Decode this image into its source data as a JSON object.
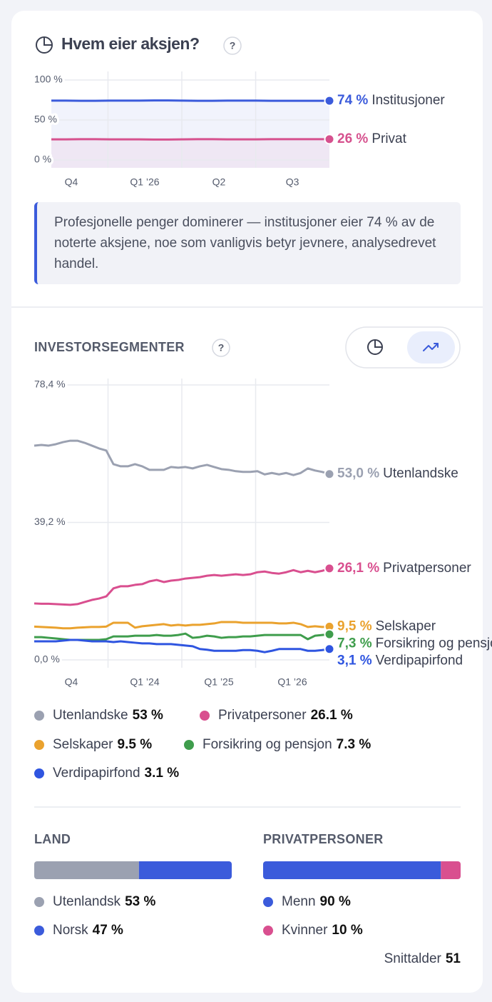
{
  "ownership": {
    "title": "Hvem eier aksjen?",
    "help": "?",
    "chart_data": {
      "type": "area",
      "xlim": [
        0,
        19
      ],
      "xticks": [
        {
          "value": 1.36,
          "label": "Q4"
        },
        {
          "value": 6.38,
          "label": "Q1 ’26"
        },
        {
          "value": 11.45,
          "label": "Q2"
        },
        {
          "value": 16.47,
          "label": "Q3"
        }
      ],
      "ylim": [
        0,
        100
      ],
      "yticks": [
        {
          "value": 100,
          "label": "100 %"
        },
        {
          "value": 50,
          "label": "50 %"
        },
        {
          "value": 0,
          "label": "0 %"
        }
      ],
      "series": [
        {
          "name": "Institusjoner",
          "color": "#3b5bdb",
          "end_label": "74 %",
          "values": [
            74.2,
            74.2,
            74,
            74,
            74.2,
            74.2,
            74.2,
            74.4,
            74.4,
            74.2,
            74,
            74,
            74.2,
            74.2,
            74.2,
            74,
            74,
            74,
            74,
            74
          ]
        },
        {
          "name": "Privat",
          "color": "#d6518e",
          "end_label": "26 %",
          "values": [
            25.8,
            25.8,
            26,
            26,
            25.8,
            25.8,
            25.8,
            25.6,
            25.6,
            25.8,
            26,
            26,
            25.8,
            25.8,
            25.8,
            26,
            26,
            26,
            26,
            26
          ]
        }
      ]
    },
    "note": "Profesjonelle penger dominerer — institusjoner eier 74 % av de noterte aksjene, noe som vanligvis betyr jevnere, analysedrevet handel."
  },
  "segments": {
    "title": "INVESTORSEGMENTER",
    "help": "?",
    "chart_data": {
      "type": "line",
      "xlim": [
        0,
        41
      ],
      "xticks": [
        {
          "value": 5.15,
          "label": "Q4"
        },
        {
          "value": 15.35,
          "label": "Q1 ’24"
        },
        {
          "value": 25.65,
          "label": "Q1 ’25"
        },
        {
          "value": 35.85,
          "label": "Q1 ’26"
        }
      ],
      "ylim": [
        0,
        78.4
      ],
      "yticks": [
        {
          "value": 78.4,
          "label": "78,4 %"
        },
        {
          "value": 39.2,
          "label": "39,2 %"
        },
        {
          "value": 0,
          "label": "0,0 %"
        }
      ],
      "series": [
        {
          "name": "Utenlandske",
          "color": "#9ba1b1",
          "end_label": "53,0 %",
          "legend_label": "53 %",
          "values": [
            61.1,
            61.3,
            61.1,
            61.5,
            62.1,
            62.5,
            62.5,
            61.9,
            61.1,
            60.3,
            59.7,
            55.8,
            55.2,
            55.2,
            55.8,
            55.2,
            54.2,
            54.2,
            54.2,
            55.0,
            54.8,
            55.0,
            54.6,
            55.2,
            55.6,
            55.0,
            54.4,
            54.2,
            53.8,
            53.6,
            53.6,
            53.8,
            52.9,
            53.3,
            52.9,
            53.3,
            52.7,
            53.3,
            54.6,
            54.0,
            53.6,
            53.0
          ]
        },
        {
          "name": "Privatpersoner",
          "color": "#d94f8f",
          "end_label": "26,1 %",
          "legend_label": "26.1 %",
          "values": [
            16.1,
            16.0,
            16.0,
            15.9,
            15.8,
            15.7,
            15.9,
            16.5,
            17.1,
            17.5,
            18.1,
            20.4,
            21.0,
            21.0,
            21.4,
            21.6,
            22.4,
            22.8,
            22.2,
            22.6,
            22.8,
            23.2,
            23.4,
            23.6,
            24.0,
            24.2,
            24.0,
            24.2,
            24.4,
            24.2,
            24.4,
            25.0,
            25.2,
            24.8,
            24.6,
            25.0,
            25.6,
            25.0,
            25.4,
            25.0,
            25.4,
            26.1
          ]
        },
        {
          "name": "Selskaper",
          "color": "#eaa22e",
          "end_label": "9,5 %",
          "legend_label": "9.5 %",
          "values": [
            9.5,
            9.4,
            9.3,
            9.2,
            9.0,
            9.0,
            9.2,
            9.3,
            9.4,
            9.4,
            9.5,
            10.6,
            10.6,
            10.6,
            9.2,
            9.6,
            9.8,
            10.0,
            10.2,
            9.8,
            10.0,
            9.8,
            10.0,
            10.0,
            10.2,
            10.4,
            10.8,
            10.8,
            10.8,
            10.6,
            10.6,
            10.6,
            10.6,
            10.6,
            10.4,
            10.4,
            10.6,
            10.2,
            9.4,
            9.6,
            9.4,
            9.5
          ]
        },
        {
          "name": "Forsikring og pensjon",
          "color": "#3f9d4c",
          "end_label": "7,3 %",
          "legend_label": "7.3 %",
          "values": [
            6.5,
            6.5,
            6.3,
            6.1,
            5.9,
            5.7,
            5.7,
            5.7,
            5.7,
            5.7,
            5.9,
            6.7,
            6.7,
            6.7,
            6.9,
            6.9,
            6.9,
            7.1,
            6.9,
            6.9,
            7.1,
            7.5,
            6.3,
            6.5,
            6.9,
            6.7,
            6.3,
            6.5,
            6.5,
            6.7,
            6.7,
            6.9,
            7.1,
            7.1,
            7.1,
            7.1,
            7.1,
            7.1,
            5.9,
            6.9,
            7.1,
            7.3
          ]
        },
        {
          "name": "Verdipapirfond",
          "color": "#2f55e0",
          "end_label": "3,1 %",
          "legend_label": "3.1 %",
          "values": [
            5.3,
            5.3,
            5.3,
            5.3,
            5.5,
            5.7,
            5.7,
            5.5,
            5.3,
            5.3,
            5.3,
            5.1,
            5.3,
            5.1,
            4.9,
            4.7,
            4.7,
            4.5,
            4.5,
            4.5,
            4.3,
            4.1,
            3.9,
            3.1,
            2.9,
            2.6,
            2.6,
            2.6,
            2.6,
            2.8,
            2.8,
            2.6,
            2.2,
            2.6,
            3.1,
            3.1,
            3.1,
            3.1,
            2.6,
            2.6,
            2.8,
            3.1
          ]
        }
      ]
    }
  },
  "breakdown": [
    {
      "title": "LAND",
      "items": [
        {
          "name": "Utenlandsk",
          "value": 53,
          "label": "53 %",
          "color": "#9ba1b1"
        },
        {
          "name": "Norsk",
          "value": 47,
          "label": "47 %",
          "color": "#3b5bdb"
        }
      ]
    },
    {
      "title": "PRIVATPERSONER",
      "items": [
        {
          "name": "Menn",
          "value": 90,
          "label": "90 %",
          "color": "#3b5bdb"
        },
        {
          "name": "Kvinner",
          "value": 10,
          "label": "10 %",
          "color": "#d94f8f"
        }
      ]
    }
  ],
  "average_age": {
    "label": "Snittalder",
    "value": 51
  }
}
